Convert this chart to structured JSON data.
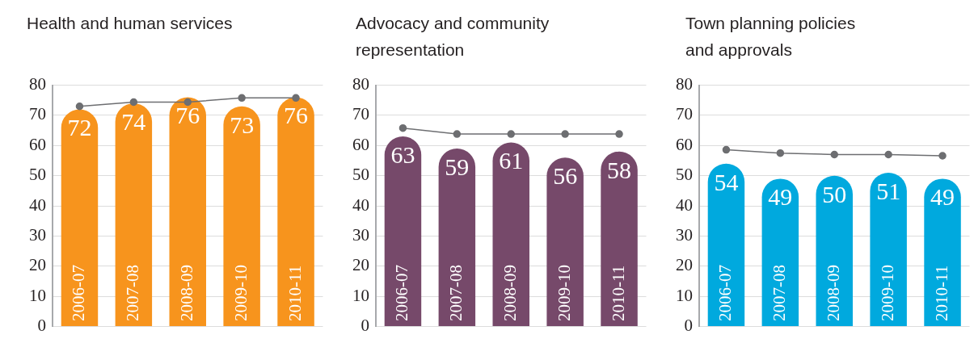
{
  "chart_data": [
    {
      "type": "bar",
      "title": "Health and human services",
      "categories": [
        "2006-07",
        "2007-08",
        "2008-09",
        "2009-10",
        "2010-11"
      ],
      "series": [
        {
          "color": "#f7941d",
          "values": [
            72,
            74,
            76,
            73,
            76
          ],
          "value_labels": [
            "72",
            "74",
            "76",
            "73",
            "76"
          ]
        },
        {
          "type": "line",
          "color": "#6d6e71",
          "marker": "circle",
          "values": [
            73,
            74.4,
            74.4,
            75.8,
            75.8
          ]
        }
      ],
      "ylim": [
        0,
        80
      ],
      "yticks": [
        0,
        10,
        20,
        30,
        40,
        50,
        60,
        70,
        80
      ],
      "grid": "y",
      "legend": false
    },
    {
      "type": "bar",
      "title": "Advocacy and community representation",
      "categories": [
        "2006-07",
        "2007-08",
        "2008-09",
        "2009-10",
        "2010-11"
      ],
      "series": [
        {
          "color": "#76496a",
          "values": [
            63,
            59,
            61,
            56,
            58
          ],
          "value_labels": [
            "63",
            "59",
            "61",
            "56",
            "58"
          ]
        },
        {
          "type": "line",
          "color": "#6d6e71",
          "marker": "circle",
          "values": [
            65.8,
            63.8,
            63.8,
            63.8,
            63.8
          ]
        }
      ],
      "ylim": [
        0,
        80
      ],
      "yticks": [
        0,
        10,
        20,
        30,
        40,
        50,
        60,
        70,
        80
      ],
      "grid": "y",
      "legend": false
    },
    {
      "type": "bar",
      "title": "Town planning policies and approvals",
      "categories": [
        "2006-07",
        "2007-08",
        "2008-09",
        "2009-10",
        "2010-11"
      ],
      "series": [
        {
          "color": "#00a9de",
          "values": [
            54,
            49,
            50,
            51,
            49
          ],
          "value_labels": [
            "54",
            "49",
            "50",
            "51",
            "49"
          ]
        },
        {
          "type": "line",
          "color": "#6d6e71",
          "marker": "circle",
          "values": [
            58.6,
            57.5,
            57.0,
            57.0,
            56.6
          ]
        }
      ],
      "ylim": [
        0,
        80
      ],
      "yticks": [
        0,
        10,
        20,
        30,
        40,
        50,
        60,
        70,
        80
      ],
      "grid": "y",
      "legend": false
    }
  ]
}
